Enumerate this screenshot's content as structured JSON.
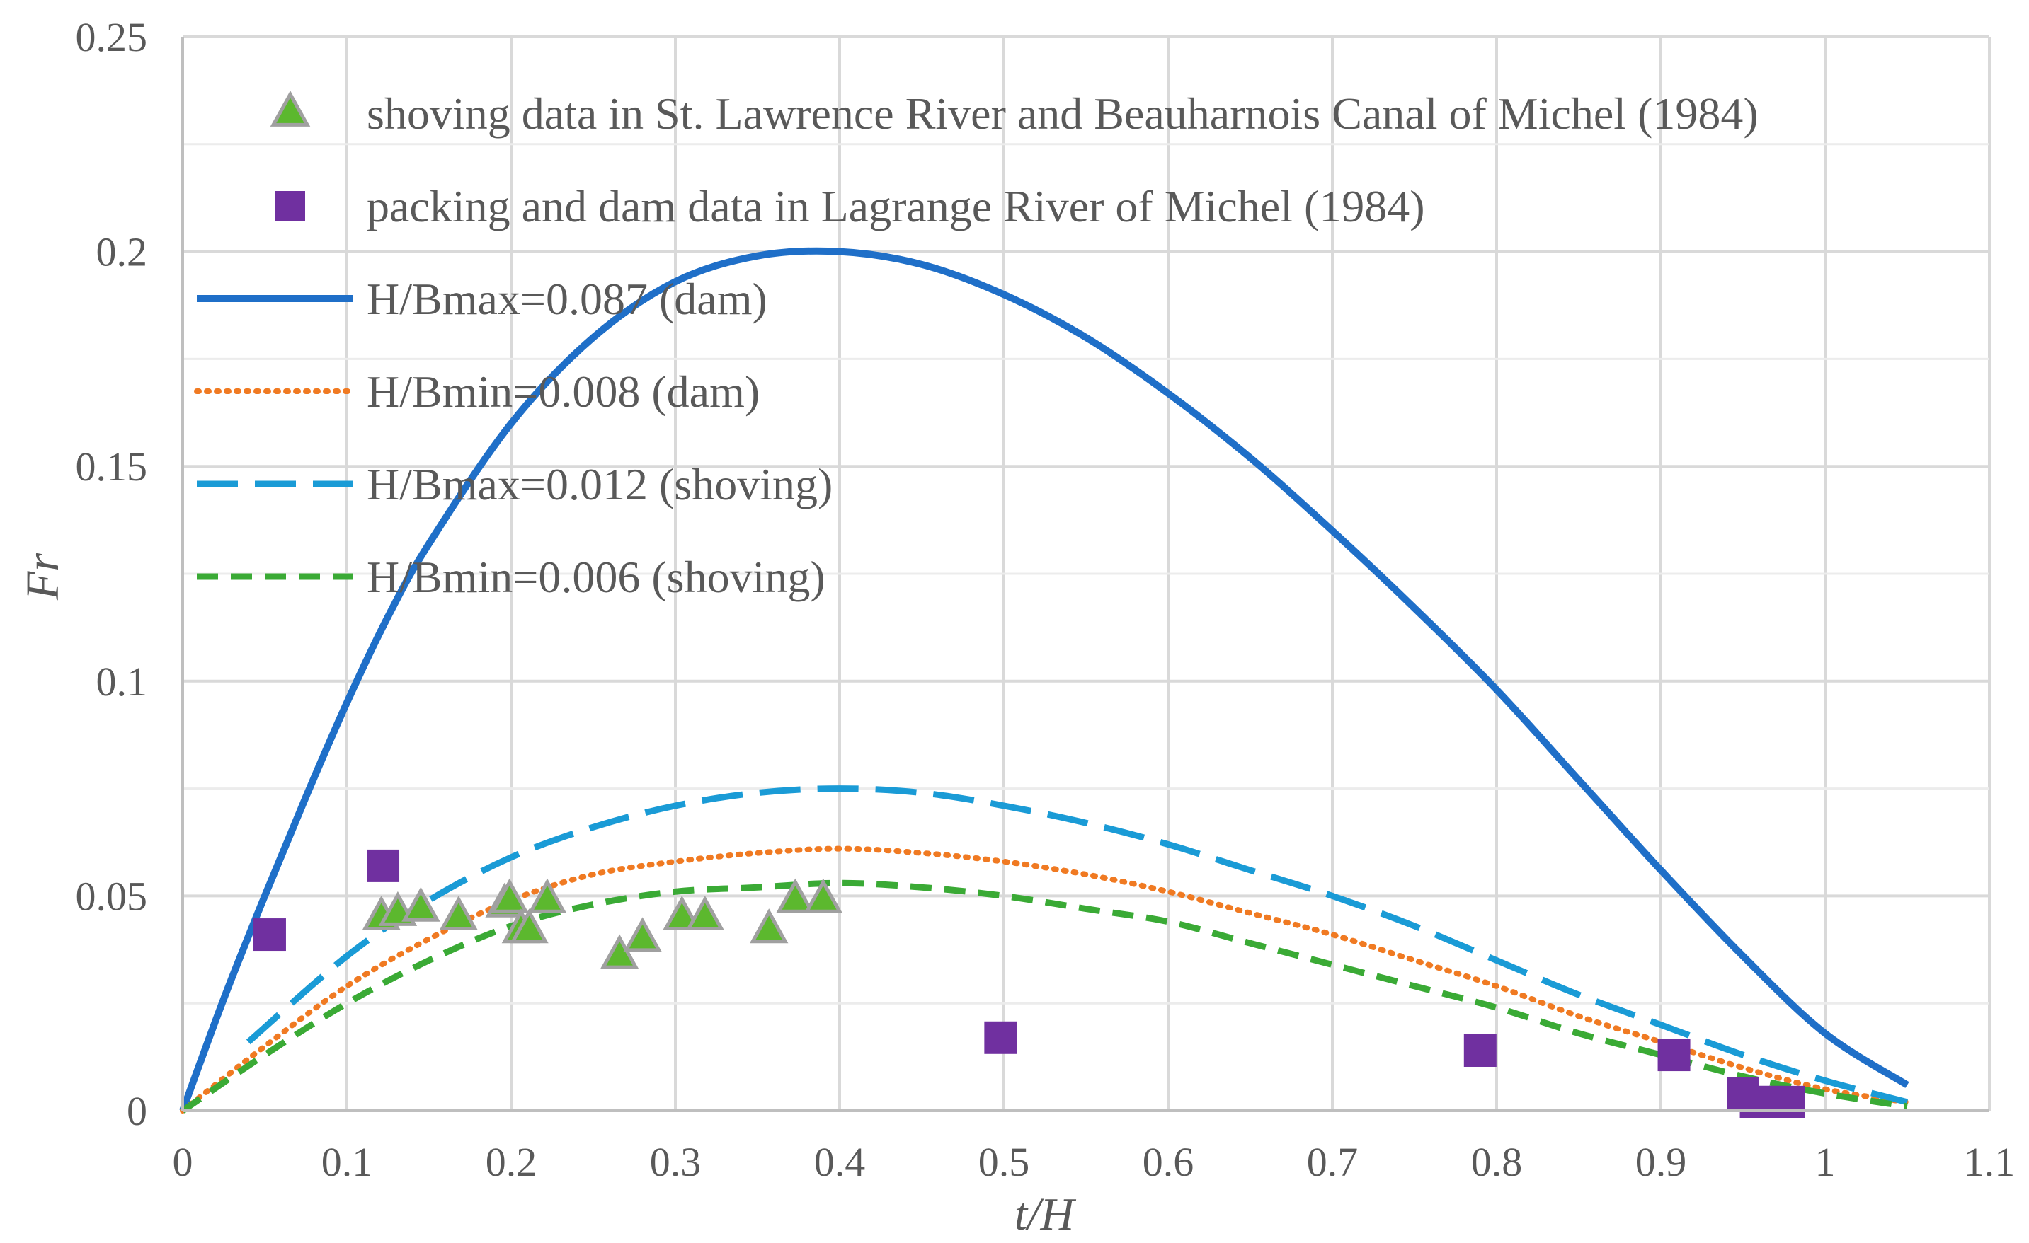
{
  "chart_data": {
    "type": "scatter",
    "title": "",
    "xlabel": "t/H",
    "ylabel": "Fr",
    "xlim": [
      0,
      1.1
    ],
    "ylim": [
      0,
      0.25
    ],
    "x_ticks": [
      "0",
      "0.1",
      "0.2",
      "0.3",
      "0.4",
      "0.5",
      "0.6",
      "0.7",
      "0.8",
      "0.9",
      "1",
      "1.1"
    ],
    "y_ticks": [
      "0",
      "0.05",
      "0.1",
      "0.15",
      "0.2",
      "0.25"
    ],
    "grid": true,
    "legend_position": "top-left",
    "series": [
      {
        "name": "shoving data in St. Lawrence River and Beauharnois Canal of Michel (1984)",
        "kind": "scatter",
        "marker": "triangle",
        "color": "#5cb82e",
        "edge_color": "#a0a0a0",
        "x": [
          0.121,
          0.131,
          0.145,
          0.168,
          0.196,
          0.199,
          0.206,
          0.211,
          0.222,
          0.266,
          0.28,
          0.304,
          0.318,
          0.357,
          0.373,
          0.39
        ],
        "y": [
          0.045,
          0.046,
          0.047,
          0.045,
          0.048,
          0.049,
          0.042,
          0.042,
          0.049,
          0.036,
          0.04,
          0.045,
          0.045,
          0.042,
          0.049,
          0.049
        ]
      },
      {
        "name": "packing and dam data in Lagrange River of Michel (1984)",
        "kind": "scatter",
        "marker": "square",
        "color": "#7030a0",
        "x": [
          0.053,
          0.122,
          0.498,
          0.79,
          0.908,
          0.95,
          0.958,
          0.966,
          0.978
        ],
        "y": [
          0.041,
          0.057,
          0.017,
          0.014,
          0.013,
          0.004,
          0.002,
          0.002,
          0.002
        ]
      },
      {
        "name": "H/Bmax=0.087 (dam)",
        "kind": "line",
        "style": "solid",
        "color": "#1f6fc8",
        "x": [
          0,
          0.025,
          0.05,
          0.075,
          0.1,
          0.125,
          0.15,
          0.2,
          0.25,
          0.3,
          0.35,
          0.4,
          0.45,
          0.5,
          0.55,
          0.6,
          0.65,
          0.7,
          0.75,
          0.8,
          0.85,
          0.9,
          0.95,
          1.0,
          1.05
        ],
        "y": [
          0,
          0.026,
          0.05,
          0.073,
          0.095,
          0.115,
          0.132,
          0.16,
          0.18,
          0.193,
          0.199,
          0.2,
          0.197,
          0.19,
          0.18,
          0.167,
          0.152,
          0.135,
          0.117,
          0.098,
          0.077,
          0.056,
          0.036,
          0.018,
          0.006
        ]
      },
      {
        "name": "H/Bmin=0.008 (dam)",
        "kind": "line",
        "style": "dotted",
        "color": "#f07a22",
        "x": [
          0,
          0.05,
          0.1,
          0.15,
          0.2,
          0.25,
          0.3,
          0.35,
          0.4,
          0.45,
          0.5,
          0.55,
          0.6,
          0.65,
          0.7,
          0.75,
          0.8,
          0.85,
          0.9,
          0.95,
          1.0,
          1.05
        ],
        "y": [
          0,
          0.015,
          0.029,
          0.04,
          0.049,
          0.055,
          0.058,
          0.06,
          0.061,
          0.06,
          0.058,
          0.055,
          0.051,
          0.046,
          0.041,
          0.035,
          0.029,
          0.022,
          0.016,
          0.01,
          0.005,
          0.002
        ]
      },
      {
        "name": "H/Bmax=0.012 (shoving)",
        "kind": "line",
        "style": "long-dash",
        "color": "#1a9bd6",
        "x": [
          0.04,
          0.1,
          0.15,
          0.2,
          0.25,
          0.3,
          0.35,
          0.4,
          0.45,
          0.5,
          0.55,
          0.6,
          0.65,
          0.7,
          0.75,
          0.8,
          0.85,
          0.9,
          0.95,
          1.0,
          1.05
        ],
        "y": [
          0.016,
          0.036,
          0.049,
          0.059,
          0.066,
          0.071,
          0.074,
          0.075,
          0.074,
          0.071,
          0.067,
          0.062,
          0.056,
          0.05,
          0.043,
          0.035,
          0.027,
          0.02,
          0.013,
          0.007,
          0.002
        ]
      },
      {
        "name": "H/Bmin=0.006 (shoving)",
        "kind": "line",
        "style": "dashed",
        "color": "#3aaa35",
        "x": [
          0,
          0.05,
          0.1,
          0.15,
          0.2,
          0.25,
          0.3,
          0.35,
          0.4,
          0.45,
          0.5,
          0.55,
          0.6,
          0.65,
          0.7,
          0.75,
          0.8,
          0.85,
          0.9,
          0.95,
          1.0,
          1.05
        ],
        "y": [
          0,
          0.013,
          0.025,
          0.035,
          0.043,
          0.048,
          0.051,
          0.052,
          0.053,
          0.052,
          0.05,
          0.047,
          0.044,
          0.039,
          0.034,
          0.029,
          0.024,
          0.018,
          0.013,
          0.008,
          0.004,
          0.001
        ]
      }
    ]
  }
}
